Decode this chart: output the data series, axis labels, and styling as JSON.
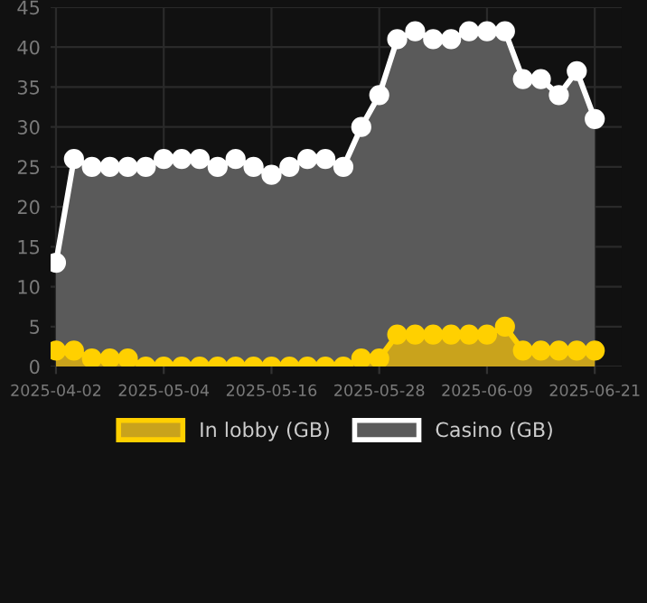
{
  "chart_data": {
    "type": "area",
    "categories": [
      "2025-04-02",
      null,
      null,
      null,
      null,
      null,
      "2025-05-04",
      null,
      null,
      null,
      null,
      null,
      "2025-05-16",
      null,
      null,
      null,
      null,
      null,
      "2025-05-28",
      null,
      null,
      null,
      null,
      null,
      "2025-06-09",
      null,
      null,
      null,
      null,
      null,
      "2025-06-21"
    ],
    "series": [
      {
        "name": "In lobby (GB)",
        "color": "#ffd000",
        "values": [
          2,
          2,
          1,
          1,
          1,
          0,
          0,
          0,
          0,
          0,
          0,
          0,
          0,
          0,
          0,
          0,
          0,
          1,
          1,
          4,
          4,
          4,
          4,
          4,
          4,
          5,
          2,
          2,
          2,
          2,
          2
        ]
      },
      {
        "name": "Casino (GB)",
        "color": "#ffffff",
        "values": [
          13,
          26,
          25,
          25,
          25,
          25,
          26,
          26,
          26,
          25,
          26,
          25,
          24,
          25,
          26,
          26,
          25,
          30,
          34,
          41,
          42,
          41,
          41,
          42,
          42,
          42,
          36,
          36,
          34,
          37,
          31
        ]
      }
    ],
    "ylim": [
      0,
      45
    ],
    "yticks": [
      0,
      5,
      10,
      15,
      20,
      25,
      30,
      35,
      40,
      45
    ],
    "grid": true,
    "legend": "bottom",
    "marker": "circle",
    "line_style": "solid"
  }
}
